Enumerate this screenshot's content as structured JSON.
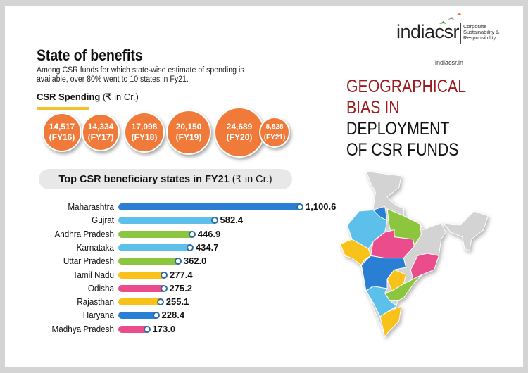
{
  "logo": {
    "name": "indiacsr",
    "tagline": [
      "Corporate",
      "Sustainability &",
      "Responsibility"
    ],
    "url": "indiacsr.in"
  },
  "title": "State of benefits",
  "subtitle": "Among CSR funds for which state-wise estimate of spending is available, over 80% went to 10 states in Fy21.",
  "spending_label": {
    "bold": "CSR Spending",
    "unit": "(₹ in Cr.)"
  },
  "headline": {
    "red": [
      "GEOGRAPHICAL",
      "BIAS IN"
    ],
    "black": [
      "DEPLOYMENT",
      "OF CSR FUNDS"
    ]
  },
  "colors": {
    "bubble": "#f07a3a",
    "headline_red": "#9b1b1f",
    "blue": "#2a7fd4",
    "light_blue": "#5cc0ea",
    "green": "#8cc63f",
    "yellow": "#f9c21b",
    "pink": "#ea4c8c",
    "map_gray": "#d3d3d3"
  },
  "chart_data": [
    {
      "type": "bubble",
      "title": "CSR Spending (₹ in Cr.)",
      "categories": [
        "FY16",
        "FY17",
        "FY18",
        "FY19",
        "FY20",
        "FY21"
      ],
      "values": [
        "14,517",
        "14,334",
        "17,098",
        "20,150",
        "24,689",
        "8,828"
      ]
    },
    {
      "type": "bar",
      "orientation": "horizontal",
      "title": {
        "bold": "Top CSR beneficiary states in FY21",
        "unit": "(₹ in Cr.)"
      },
      "categories": [
        "Maharashtra",
        "Gujrat",
        "Andhra Pradesh",
        "Karnataka",
        "Uttar Pradesh",
        "Tamil Nadu",
        "Odisha",
        "Rajasthan",
        "Haryana",
        "Madhya Pradesh"
      ],
      "values": [
        1100.6,
        582.4,
        446.9,
        434.7,
        362.0,
        277.4,
        275.2,
        255.1,
        228.4,
        173.0
      ],
      "labels": [
        "1,100.6",
        "582.4",
        "446.9",
        "434.7",
        "362.0",
        "277.4",
        "275.2",
        "255.1",
        "228.4",
        "173.0"
      ],
      "bar_colors": [
        "#2a7fd4",
        "#5cc0ea",
        "#8cc63f",
        "#5cc0ea",
        "#8cc63f",
        "#f9c21b",
        "#ea4c8c",
        "#f9c21b",
        "#2a7fd4",
        "#ea4c8c"
      ],
      "grid": false
    }
  ]
}
